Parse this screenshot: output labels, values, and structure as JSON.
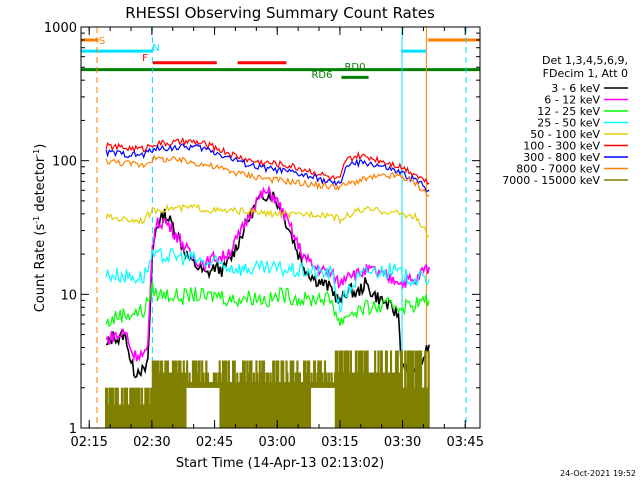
{
  "chart_data": {
    "type": "line",
    "title": "RHESSI Observing Summary Count Rates",
    "xlabel": "Start Time (14-Apr-13 02:13:02)",
    "ylabel_main": "Count Rate (s",
    "ylabel_sup": "-1",
    "ylabel_mid": " detector",
    "ylabel_end": ")",
    "timestamp": "24-Oct-2021 19:52",
    "y_scale": "log",
    "xlim": [
      0,
      5730
    ],
    "ylim": [
      1,
      1000
    ],
    "x_ticks": [
      {
        "label": "02:15",
        "t": 118
      },
      {
        "label": "02:30",
        "t": 1018
      },
      {
        "label": "02:45",
        "t": 1918
      },
      {
        "label": "03:00",
        "t": 2818
      },
      {
        "label": "03:15",
        "t": 3718
      },
      {
        "label": "03:30",
        "t": 4618
      },
      {
        "label": "03:45",
        "t": 5518
      }
    ],
    "y_ticks": [
      {
        "label": "1",
        "v": 1
      },
      {
        "label": "10",
        "v": 10
      },
      {
        "label": "100",
        "v": 100
      },
      {
        "label": "1000",
        "v": 1000
      }
    ],
    "legend_header": [
      "Det 1,3,4,5,6,9,",
      "FDecim 1, Att 0"
    ],
    "legend_position": "right",
    "flags": [
      {
        "name": "S",
        "color": "#ff8000",
        "y": 800,
        "segments": [
          [
            0,
            250
          ],
          [
            4980,
            5730
          ]
        ]
      },
      {
        "name": "N",
        "color": "#00e0ff",
        "y": 660,
        "segments": [
          [
            0,
            1020
          ],
          [
            4600,
            4960
          ]
        ]
      },
      {
        "name": "F",
        "color": "#ff0000",
        "y": 540,
        "segments": [
          [
            1030,
            1950
          ],
          [
            2250,
            2950
          ]
        ]
      },
      {
        "name": "RD0",
        "color": "#008000",
        "y": 480,
        "segments": [
          [
            0,
            5730
          ]
        ]
      },
      {
        "name": "RD6",
        "color": "#008000",
        "y": 420,
        "segments": [
          [
            3740,
            4130
          ]
        ]
      }
    ],
    "vlines": [
      {
        "t": 230,
        "color": "#ff8000",
        "style": "dashed"
      },
      {
        "t": 1025,
        "color": "#00e0ff",
        "style": "dashed"
      },
      {
        "t": 4610,
        "color": "#00e0ff",
        "style": "solid"
      },
      {
        "t": 4960,
        "color": "#ff8000",
        "style": "solid"
      },
      {
        "t": 5530,
        "color": "#00e0ff",
        "style": "dashed"
      }
    ],
    "series": [
      {
        "name": "3 - 6 keV",
        "color": "#000000",
        "x": [
          360,
          480,
          540,
          600,
          660,
          720,
          780,
          840,
          900,
          960,
          1025,
          1080,
          1200,
          1320,
          1440,
          1560,
          1680,
          1800,
          1920,
          2040,
          2160,
          2280,
          2400,
          2520,
          2640,
          2760,
          2880,
          3000,
          3120,
          3240,
          3360,
          3480,
          3600,
          3720,
          3840,
          3960,
          4080,
          4200,
          4320,
          4440,
          4560,
          4600,
          4700,
          4800,
          4900,
          5000
        ],
        "y": [
          4,
          5,
          4.5,
          5,
          4.5,
          3,
          2.6,
          2.8,
          2.6,
          3,
          20,
          32,
          40,
          33,
          24,
          18,
          16,
          14,
          16,
          15,
          19,
          26,
          36,
          48,
          56,
          55,
          42,
          30,
          20,
          15,
          13,
          12,
          11,
          8.5,
          11,
          10,
          12,
          10,
          9,
          8,
          7,
          3,
          2.8,
          2.5,
          3.2,
          4.2
        ]
      },
      {
        "name": "6 - 12 keV",
        "color": "#ff00ff",
        "x": [
          360,
          480,
          540,
          600,
          660,
          720,
          780,
          840,
          900,
          960,
          1025,
          1080,
          1200,
          1320,
          1440,
          1560,
          1680,
          1800,
          1920,
          2040,
          2160,
          2280,
          2400,
          2520,
          2640,
          2760,
          2880,
          3000,
          3120,
          3240,
          3360,
          3480,
          3600,
          3720,
          3840,
          3960,
          4080,
          4200,
          4320,
          4440,
          4560,
          4600,
          4700,
          4800,
          4900,
          5000
        ],
        "y": [
          4.5,
          5,
          4.8,
          5.2,
          5,
          3.8,
          3.5,
          3.6,
          3.5,
          3.8,
          24,
          33,
          36,
          30,
          25,
          20,
          18,
          17,
          19,
          19,
          22,
          28,
          38,
          50,
          58,
          55,
          43,
          32,
          23,
          18,
          16,
          15,
          14,
          12,
          15,
          14,
          15,
          15,
          14,
          13,
          13,
          12,
          13,
          12,
          15,
          16
        ]
      },
      {
        "name": "12 - 25 keV",
        "color": "#00ff00",
        "x": [
          360,
          540,
          720,
          900,
          1025,
          1100,
          1260,
          1440,
          1620,
          1800,
          1980,
          2160,
          2340,
          2520,
          2700,
          2880,
          3060,
          3240,
          3420,
          3600,
          3720,
          3800,
          3960,
          4140,
          4320,
          4500,
          4600,
          4800,
          5000
        ],
        "y": [
          6,
          7,
          7.2,
          7.5,
          11,
          10,
          10,
          9.5,
          10,
          9.5,
          10,
          9,
          9.5,
          9.5,
          9,
          10,
          9.5,
          9,
          9.5,
          9,
          6,
          7,
          7.5,
          8,
          8,
          8.5,
          8,
          8.5,
          9
        ]
      },
      {
        "name": "25 - 50 keV",
        "color": "#00ffff",
        "x": [
          360,
          540,
          720,
          900,
          1025,
          1100,
          1260,
          1440,
          1620,
          1800,
          1980,
          2160,
          2340,
          2520,
          2700,
          2880,
          3060,
          3240,
          3420,
          3600,
          3720,
          3800,
          3960,
          4140,
          4320,
          4500,
          4600,
          4800,
          5000
        ],
        "y": [
          14,
          14,
          13.5,
          13.5,
          19,
          19,
          19.5,
          19,
          18.5,
          17,
          17,
          16,
          15.5,
          15.5,
          15.5,
          15.5,
          15,
          15,
          14.5,
          14.5,
          8,
          10,
          13,
          15,
          15,
          15,
          14,
          13,
          13
        ]
      },
      {
        "name": "50 - 100 keV",
        "color": "#e0d000",
        "x": [
          360,
          540,
          720,
          900,
          1025,
          1100,
          1260,
          1440,
          1620,
          1800,
          1980,
          2160,
          2340,
          2520,
          2700,
          2880,
          3060,
          3240,
          3420,
          3600,
          3720,
          3800,
          3960,
          4140,
          4320,
          4500,
          4600,
          4800,
          5000
        ],
        "y": [
          38,
          37,
          36,
          36,
          42,
          43,
          44,
          44,
          45,
          43,
          42,
          42,
          42,
          41,
          40,
          40,
          39,
          40,
          40,
          39,
          36,
          38,
          42,
          43,
          42,
          41,
          40,
          38,
          27
        ]
      },
      {
        "name": "100 - 300 keV",
        "color": "#ff0000",
        "x": [
          360,
          540,
          720,
          900,
          1025,
          1100,
          1260,
          1440,
          1620,
          1800,
          1980,
          2160,
          2340,
          2520,
          2700,
          2880,
          3060,
          3240,
          3420,
          3600,
          3720,
          3800,
          3960,
          4140,
          4320,
          4500,
          4600,
          4800,
          5000
        ],
        "y": [
          128,
          126,
          124,
          122,
          134,
          134,
          135,
          138,
          138,
          132,
          122,
          112,
          103,
          98,
          96,
          94,
          90,
          85,
          80,
          74,
          72,
          100,
          108,
          106,
          100,
          94,
          90,
          80,
          68
        ]
      },
      {
        "name": "300 - 800 keV",
        "color": "#0000ff",
        "x": [
          360,
          540,
          720,
          900,
          1025,
          1100,
          1260,
          1440,
          1620,
          1800,
          1980,
          2160,
          2340,
          2520,
          2700,
          2880,
          3060,
          3240,
          3420,
          3600,
          3720,
          3800,
          3960,
          4140,
          4320,
          4500,
          4600,
          4800,
          5000
        ],
        "y": [
          115,
          113,
          111,
          110,
          122,
          122,
          125,
          126,
          127,
          122,
          113,
          104,
          96,
          90,
          87,
          84,
          81,
          77,
          73,
          68,
          66,
          90,
          96,
          96,
          90,
          84,
          80,
          72,
          60
        ]
      },
      {
        "name": "800 - 7000 keV",
        "color": "#ff8000",
        "x": [
          360,
          540,
          720,
          900,
          1025,
          1100,
          1260,
          1440,
          1620,
          1800,
          1980,
          2160,
          2340,
          2520,
          2700,
          2880,
          3060,
          3240,
          3420,
          3600,
          3720,
          3800,
          3960,
          4140,
          4320,
          4500,
          4600,
          4800,
          5000
        ],
        "y": [
          100,
          97,
          95,
          93,
          103,
          103,
          102,
          100,
          97,
          93,
          88,
          83,
          79,
          76,
          73,
          71,
          69,
          67,
          65,
          64,
          64,
          66,
          70,
          74,
          76,
          77,
          76,
          68,
          55
        ]
      },
      {
        "name": "7000 - 15000 keV",
        "color": "#808000",
        "x": [],
        "y": []
      }
    ]
  }
}
